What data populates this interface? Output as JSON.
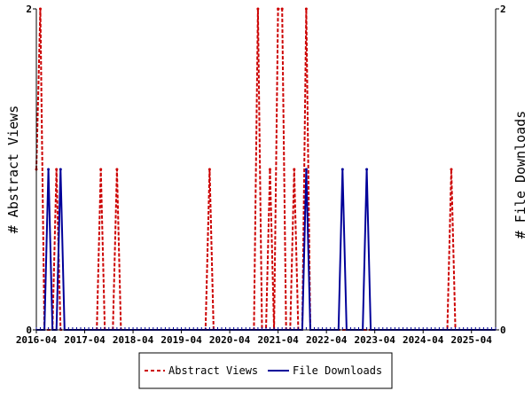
{
  "chart_data": {
    "type": "line",
    "x_tick_labels": [
      "2016-04",
      "2017-04",
      "2018-04",
      "2019-04",
      "2020-04",
      "2021-04",
      "2022-04",
      "2023-04",
      "2024-04",
      "2025-04"
    ],
    "ylabel_left": "# Abstract Views",
    "ylabel_right": "# File Downloads",
    "ylim_left": [
      0,
      2
    ],
    "ylim_right": [
      0,
      2
    ],
    "y_tick_labels_left": [
      "0",
      "2"
    ],
    "y_tick_labels_right": [
      "0",
      "2"
    ],
    "x_period": "monthly",
    "x_start_month": "2016-04",
    "grid": false,
    "legend_position": "bottom-center",
    "series": [
      {
        "name": "Abstract Views",
        "color": "#cc0000",
        "style": "dashed",
        "axis": "left",
        "points": [
          {
            "month": "2016-04",
            "value": 1
          },
          {
            "month": "2016-05",
            "value": 2
          },
          {
            "month": "2016-09",
            "value": 1
          },
          {
            "month": "2017-08",
            "value": 1
          },
          {
            "month": "2017-12",
            "value": 1
          },
          {
            "month": "2019-11",
            "value": 1
          },
          {
            "month": "2020-11",
            "value": 2
          },
          {
            "month": "2021-02",
            "value": 1
          },
          {
            "month": "2021-04",
            "value": 2
          },
          {
            "month": "2021-05",
            "value": 2
          },
          {
            "month": "2021-08",
            "value": 1
          },
          {
            "month": "2021-11",
            "value": 2
          },
          {
            "month": "2024-11",
            "value": 1
          }
        ]
      },
      {
        "name": "File Downloads",
        "color": "#000099",
        "style": "solid",
        "axis": "right",
        "points": [
          {
            "month": "2016-07",
            "value": 1
          },
          {
            "month": "2016-10",
            "value": 1
          },
          {
            "month": "2021-11",
            "value": 1
          },
          {
            "month": "2022-08",
            "value": 1
          },
          {
            "month": "2023-02",
            "value": 1
          }
        ]
      }
    ]
  },
  "legend": {
    "items": [
      {
        "label": "Abstract Views",
        "color": "#cc0000",
        "style": "dashed"
      },
      {
        "label": "File Downloads",
        "color": "#000099",
        "style": "solid"
      }
    ]
  }
}
